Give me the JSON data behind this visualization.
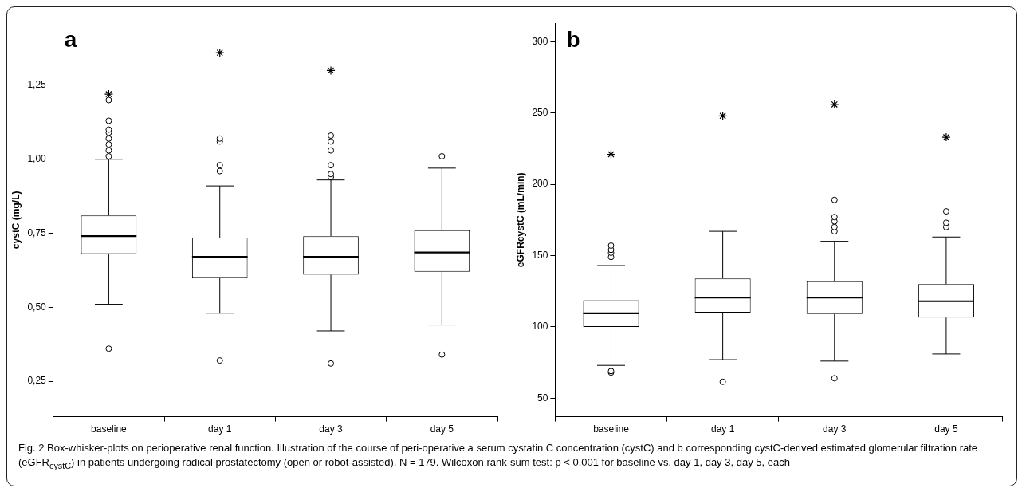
{
  "chart_data": [
    {
      "type": "box",
      "title": "a",
      "ylabel": "cystC (mg/L)",
      "categories": [
        "baseline",
        "day 1",
        "day 3",
        "day 5"
      ],
      "ylim": [
        0.13,
        1.46
      ],
      "yticks": [
        {
          "value": 0.25,
          "label": "0,25"
        },
        {
          "value": 0.5,
          "label": "0,50"
        },
        {
          "value": 0.75,
          "label": "0,75"
        },
        {
          "value": 1.0,
          "label": "1,00"
        },
        {
          "value": 1.25,
          "label": "1,25"
        }
      ],
      "boxes": [
        {
          "low": 0.51,
          "q1": 0.68,
          "median": 0.74,
          "q3": 0.81,
          "high": 1.0,
          "outliers": [
            0.36,
            1.01,
            1.03,
            1.05,
            1.07,
            1.09,
            1.1,
            1.13,
            1.2
          ]
        },
        {
          "low": 0.48,
          "q1": 0.6,
          "median": 0.67,
          "q3": 0.735,
          "high": 0.91,
          "outliers": [
            0.32,
            0.96,
            0.98,
            1.06,
            1.07
          ]
        },
        {
          "low": 0.42,
          "q1": 0.61,
          "median": 0.67,
          "q3": 0.74,
          "high": 0.93,
          "outliers": [
            0.31,
            0.94,
            0.95,
            0.98,
            1.03,
            1.06,
            1.08
          ]
        },
        {
          "low": 0.44,
          "q1": 0.62,
          "median": 0.685,
          "q3": 0.76,
          "high": 0.97,
          "outliers": [
            0.34,
            1.01
          ]
        }
      ],
      "series": [
        {
          "type": "scatter",
          "marker": "cross",
          "color": "#000000",
          "x": [
            "baseline",
            "day 1",
            "day 3"
          ],
          "values": [
            1.22,
            1.36,
            1.3
          ]
        }
      ],
      "annotations": [
        "Fig. 2 Box-whisker-plots on perioperative renal function. Illustration of the course of peri-operative a serum cystatin C concentration (cystC) and b corresponding cystC-derived estimated glomerular filtration rate (eGFR$_{cystC}$) in patients undergoing radical prostatectomy (open or robot-assisted). N = 179. Wilcoxon rank-sum test: p < 0.001 for baseline vs. day 1, day 3, day 5, each"
      ]
    },
    {
      "type": "box",
      "title": "b",
      "ylabel": "eGFRcystC (mL/min)",
      "categories": [
        "baseline",
        "day 1",
        "day 3",
        "day 5"
      ],
      "ylim": [
        37,
        313
      ],
      "yticks": [
        50,
        100,
        150,
        200,
        250,
        300
      ],
      "boxes": [
        {
          "low": 73,
          "q1": 100,
          "median": 109.5,
          "q3": 118.7,
          "high": 143,
          "outliers": [
            68,
            69,
            149,
            152,
            154,
            157
          ]
        },
        {
          "low": 77,
          "q1": 110,
          "median": 120.5,
          "q3": 134,
          "high": 167,
          "outliers": [
            61.5
          ]
        },
        {
          "low": 76,
          "q1": 109,
          "median": 120.5,
          "q3": 132,
          "high": 160,
          "outliers": [
            64,
            167,
            170,
            174,
            177,
            189
          ]
        },
        {
          "low": 81,
          "q1": 106.5,
          "median": 118,
          "q3": 130,
          "high": 163,
          "outliers": [
            170,
            173,
            181
          ]
        }
      ],
      "series": [
        {
          "type": "scatter",
          "marker": "cross",
          "color": "#000000",
          "x": [
            "baseline",
            "day 1",
            "day 3",
            "day 5"
          ],
          "values": [
            221,
            248,
            256,
            233
          ]
        }
      ]
    }
  ]
}
